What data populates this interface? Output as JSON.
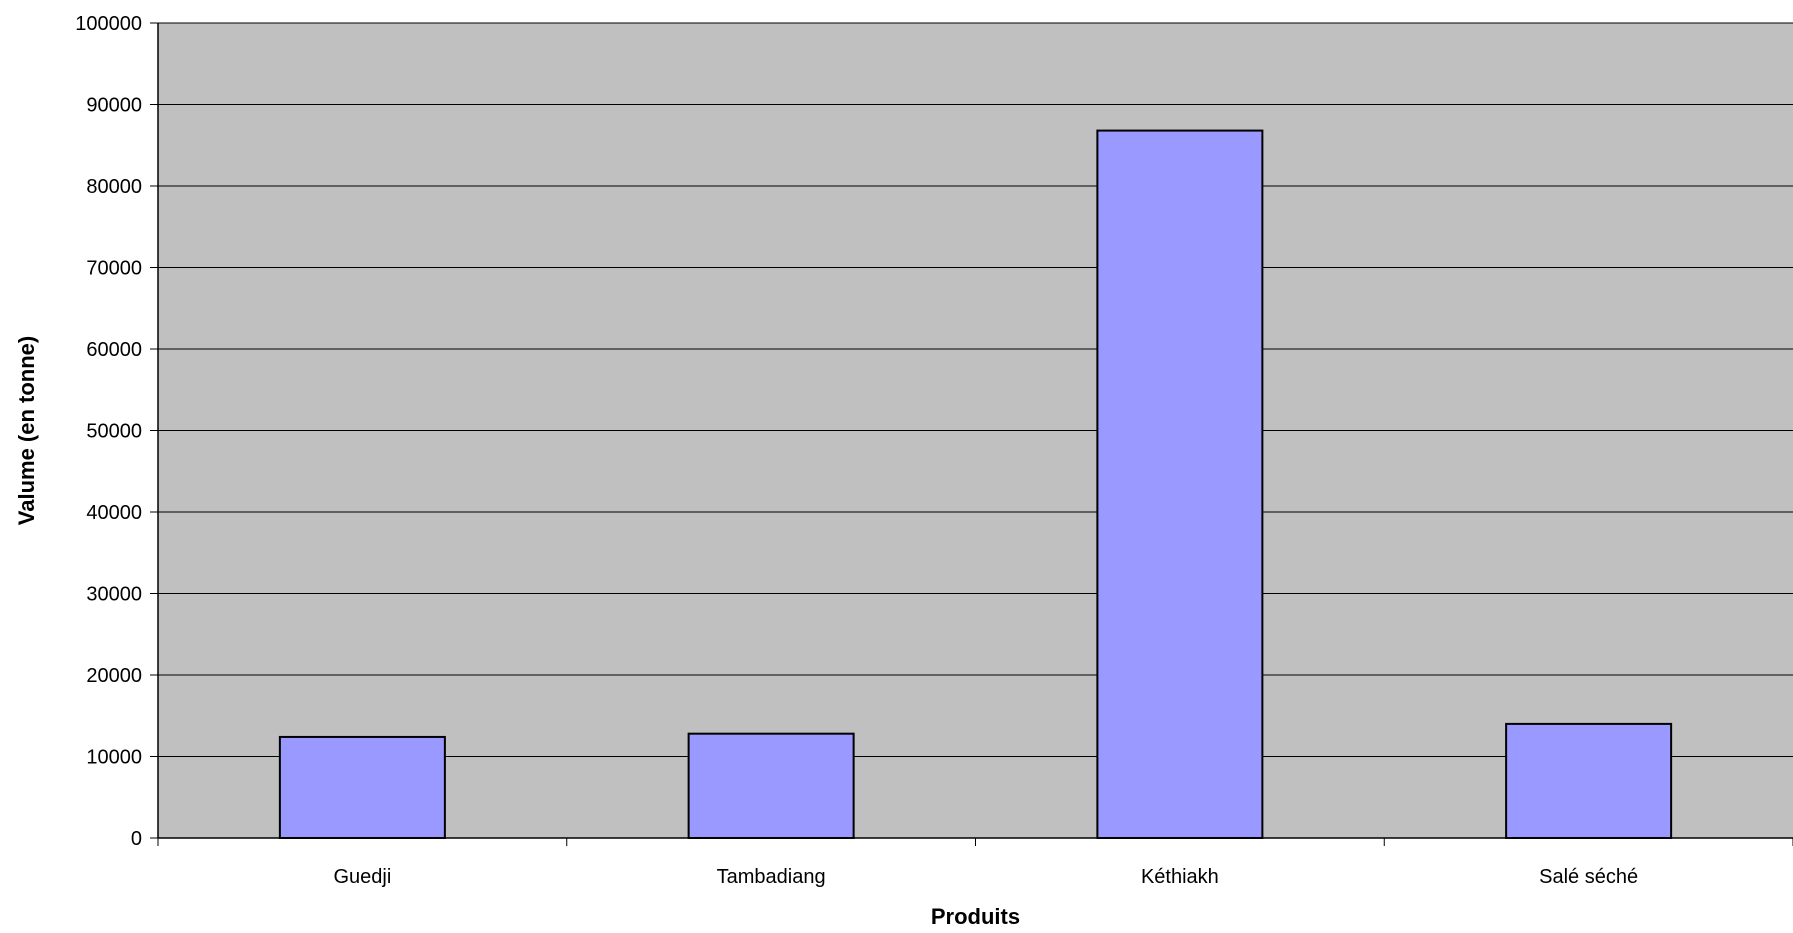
{
  "chart_data": {
    "type": "bar",
    "title": "",
    "xlabel": "Produits",
    "ylabel": "Valume (en tonne)",
    "categories": [
      "Guedji",
      "Tambadiang",
      "Kéthiakh",
      "Salé séché"
    ],
    "values": [
      12400,
      12800,
      86800,
      14000
    ],
    "ylim": [
      0,
      100000
    ],
    "ytick_step": 10000,
    "y_ticks": [
      "0",
      "10000",
      "20000",
      "30000",
      "40000",
      "50000",
      "60000",
      "70000",
      "80000",
      "90000",
      "100000"
    ],
    "grid": true,
    "legend": "none",
    "colors": {
      "plot_background": "#c0c0c0",
      "bar_fill": "#9999ff",
      "bar_stroke": "#000000",
      "gridline": "#000000"
    }
  }
}
